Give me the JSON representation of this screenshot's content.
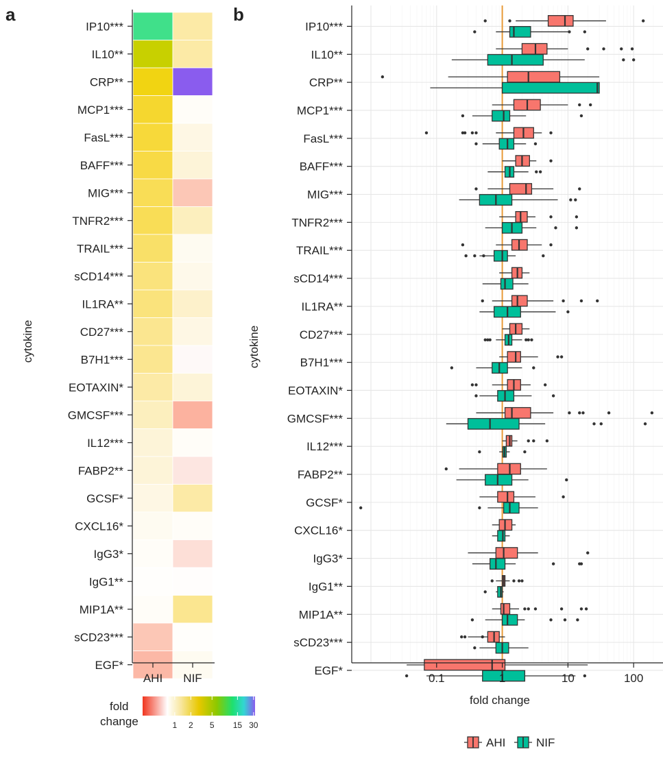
{
  "panel_a_letter": "a",
  "panel_b_letter": "b",
  "chart_data": [
    {
      "type": "heatmap",
      "panel": "a",
      "ylabel": "cytokine",
      "columns": [
        "AHI",
        "NIF"
      ],
      "rows": [
        "IP10***",
        "IL10**",
        "CRP**",
        "MCP1***",
        "FasL***",
        "BAFF***",
        "MIG***",
        "TNFR2***",
        "TRAIL***",
        "sCD14***",
        "IL1RA**",
        "CD27***",
        "B7H1***",
        "EOTAXIN*",
        "GMCSF***",
        "IL12***",
        "FABP2**",
        "GCSF*",
        "CXCL16*",
        "IgG3*",
        "IgG1**",
        "MIP1A**",
        "sCD23***",
        "EGF*"
      ],
      "values": [
        [
          9,
          1.5
        ],
        [
          4.5,
          1.5
        ],
        [
          2.5,
          30
        ],
        [
          2.2,
          1.05
        ],
        [
          2.1,
          1.2
        ],
        [
          2.0,
          1.3
        ],
        [
          1.9,
          0.6
        ],
        [
          1.9,
          1.4
        ],
        [
          1.8,
          1.1
        ],
        [
          1.7,
          1.15
        ],
        [
          1.7,
          1.35
        ],
        [
          1.6,
          1.2
        ],
        [
          1.6,
          0.95
        ],
        [
          1.5,
          1.3
        ],
        [
          1.4,
          0.4
        ],
        [
          1.3,
          1.05
        ],
        [
          1.3,
          0.8
        ],
        [
          1.2,
          1.5
        ],
        [
          1.1,
          1.05
        ],
        [
          1.05,
          0.75
        ],
        [
          1.02,
          0.98
        ],
        [
          1.05,
          1.6
        ],
        [
          0.6,
          1.03
        ],
        [
          0.45,
          1.1
        ]
      ],
      "colorbar": {
        "title": [
          "fold",
          "change"
        ],
        "tick_labels": [
          "1",
          "2",
          "5",
          "15",
          "30"
        ],
        "tick_values": [
          1,
          2,
          5,
          15,
          30
        ]
      }
    },
    {
      "type": "boxplot",
      "panel": "b",
      "ylabel": "cytokine",
      "xlabel": "fold change",
      "xscale": "log",
      "xlim": [
        0.02,
        250
      ],
      "xticks": [
        0.1,
        1,
        10,
        100
      ],
      "xtick_labels": [
        "0.1",
        "1",
        "10",
        "100"
      ],
      "reference_line": 1,
      "grid": true,
      "legend": {
        "placement": "bottom",
        "entries": [
          "AHI",
          "NIF"
        ]
      },
      "colors": {
        "AHI": "#f8766d",
        "NIF": "#00bf9a",
        "ref": "#e89a38"
      },
      "categories": [
        "IP10***",
        "IL10**",
        "CRP**",
        "MCP1***",
        "FasL***",
        "BAFF***",
        "MIG***",
        "TNFR2***",
        "TRAIL***",
        "sCD14***",
        "IL1RA**",
        "CD27***",
        "B7H1***",
        "EOTAXIN*",
        "GMCSF***",
        "IL12***",
        "FABP2**",
        "GCSF*",
        "CXCL16*",
        "IgG3*",
        "IgG1**",
        "MIP1A**",
        "sCD23***",
        "EGF*"
      ],
      "series": [
        {
          "name": "AHI",
          "boxes": [
            {
              "min": 1.6,
              "q1": 5,
              "median": 9,
              "q3": 12,
              "max": 38,
              "outliers": [
                0.55,
                1.3,
                140
              ]
            },
            {
              "min": 0.8,
              "q1": 2,
              "median": 3.2,
              "q3": 4.8,
              "max": 10,
              "outliers": [
                20,
                35,
                65,
                95
              ]
            },
            {
              "min": 0.15,
              "q1": 1.2,
              "median": 2.5,
              "q3": 7.5,
              "max": 30,
              "outliers": [
                0.015
              ]
            },
            {
              "min": 0.7,
              "q1": 1.5,
              "median": 2.4,
              "q3": 3.8,
              "max": 10,
              "outliers": [
                15,
                22
              ]
            },
            {
              "min": 0.8,
              "q1": 1.5,
              "median": 2.1,
              "q3": 3,
              "max": 4,
              "outliers": [
                0.07,
                0.25,
                0.27,
                0.35,
                0.4,
                5.5
              ]
            },
            {
              "min": 1,
              "q1": 1.6,
              "median": 2,
              "q3": 2.6,
              "max": 3.3,
              "outliers": [
                5.5
              ]
            },
            {
              "min": 0.6,
              "q1": 1.3,
              "median": 2.3,
              "q3": 2.8,
              "max": 6,
              "outliers": [
                0.4,
                15
              ]
            },
            {
              "min": 0.9,
              "q1": 1.6,
              "median": 1.9,
              "q3": 2.4,
              "max": 3.2,
              "outliers": [
                5.5,
                13.5
              ]
            },
            {
              "min": 0.8,
              "q1": 1.4,
              "median": 1.8,
              "q3": 2.4,
              "max": 4,
              "outliers": [
                0.25,
                5.5
              ]
            },
            {
              "min": 0.9,
              "q1": 1.4,
              "median": 1.7,
              "q3": 2,
              "max": 2.6,
              "outliers": []
            },
            {
              "min": 0.7,
              "q1": 1.4,
              "median": 1.7,
              "q3": 2.4,
              "max": 6,
              "outliers": [
                0.5,
                8.5,
                16,
                28
              ]
            },
            {
              "min": 1,
              "q1": 1.3,
              "median": 1.6,
              "q3": 2,
              "max": 2.6,
              "outliers": []
            },
            {
              "min": 0.9,
              "q1": 1.2,
              "median": 1.6,
              "q3": 1.9,
              "max": 3.5,
              "outliers": [
                7,
                8
              ]
            },
            {
              "min": 0.7,
              "q1": 1.2,
              "median": 1.5,
              "q3": 1.9,
              "max": 2.7,
              "outliers": [
                0.35,
                0.4,
                4.5
              ]
            },
            {
              "min": 0.4,
              "q1": 1.1,
              "median": 1.4,
              "q3": 2.7,
              "max": 6,
              "outliers": [
                10.5,
                15,
                17,
                42,
                190
              ]
            },
            {
              "min": 1,
              "q1": 1.15,
              "median": 1.3,
              "q3": 1.4,
              "max": 1.7,
              "outliers": [
                2.5,
                3,
                4.8
              ]
            },
            {
              "min": 0.22,
              "q1": 0.85,
              "median": 1.3,
              "q3": 1.9,
              "max": 4.8,
              "outliers": [
                0.14
              ]
            },
            {
              "min": 0.45,
              "q1": 0.85,
              "median": 1.2,
              "q3": 1.5,
              "max": 3.2,
              "outliers": [
                8.5
              ]
            },
            {
              "min": 0.7,
              "q1": 0.9,
              "median": 1.1,
              "q3": 1.4,
              "max": 1.6,
              "outliers": []
            },
            {
              "min": 0.3,
              "q1": 0.8,
              "median": 1.05,
              "q3": 1.7,
              "max": 3.5,
              "outliers": [
                20
              ]
            },
            {
              "min": 0.8,
              "q1": 1,
              "median": 1.05,
              "q3": 1.1,
              "max": 1.3,
              "outliers": [
                0.7,
                1.5,
                1.8,
                2
              ]
            },
            {
              "min": 0.7,
              "q1": 0.95,
              "median": 1.05,
              "q3": 1.3,
              "max": 1.8,
              "outliers": [
                2.2,
                2.5,
                3.2,
                8,
                16,
                19
              ]
            },
            {
              "min": 0.3,
              "q1": 0.6,
              "median": 0.75,
              "q3": 0.9,
              "max": 1.1,
              "outliers": [
                0.24,
                0.27,
                0.5
              ]
            },
            {
              "min": 0.035,
              "q1": 0.065,
              "median": 0.7,
              "q3": 1.1,
              "max": 20,
              "outliers": []
            }
          ]
        },
        {
          "name": "NIF",
          "boxes": [
            {
              "min": 0.8,
              "q1": 1.3,
              "median": 1.5,
              "q3": 2.7,
              "max": 10,
              "outliers": [
                0.38,
                10.5,
                18
              ]
            },
            {
              "min": 0.17,
              "q1": 0.6,
              "median": 1.4,
              "q3": 4.2,
              "max": 18,
              "outliers": [
                70,
                100
              ]
            },
            {
              "min": 0.08,
              "q1": 1,
              "median": 28,
              "q3": 30,
              "max": 30,
              "outliers": []
            },
            {
              "min": 0.35,
              "q1": 0.7,
              "median": 1.05,
              "q3": 1.3,
              "max": 2.3,
              "outliers": [
                0.25,
                16
              ]
            },
            {
              "min": 0.5,
              "q1": 0.9,
              "median": 1.2,
              "q3": 1.5,
              "max": 2.3,
              "outliers": [
                0.4,
                3.2
              ]
            },
            {
              "min": 0.6,
              "q1": 1.1,
              "median": 1.3,
              "q3": 1.5,
              "max": 2.5,
              "outliers": [
                3.3,
                3.8
              ]
            },
            {
              "min": 0.22,
              "q1": 0.45,
              "median": 0.8,
              "q3": 1.4,
              "max": 7,
              "outliers": [
                11,
                13
              ]
            },
            {
              "min": 0.55,
              "q1": 1,
              "median": 1.4,
              "q3": 2,
              "max": 3.3,
              "outliers": [
                6.5,
                13.5
              ]
            },
            {
              "min": 0.45,
              "q1": 0.75,
              "median": 1,
              "q3": 1.2,
              "max": 1.6,
              "outliers": [
                0.28,
                0.38,
                0.52,
                4.2
              ]
            },
            {
              "min": 0.5,
              "q1": 0.95,
              "median": 1.1,
              "q3": 1.45,
              "max": 2.5,
              "outliers": []
            },
            {
              "min": 0.45,
              "q1": 0.75,
              "median": 1.2,
              "q3": 1.9,
              "max": 6.5,
              "outliers": [
                10
              ]
            },
            {
              "min": 0.8,
              "q1": 1.1,
              "median": 1.25,
              "q3": 1.4,
              "max": 2,
              "outliers": [
                0.55,
                0.6,
                0.65,
                2.3,
                2.5,
                2.8
              ]
            },
            {
              "min": 0.4,
              "q1": 0.7,
              "median": 0.9,
              "q3": 1.2,
              "max": 2,
              "outliers": [
                0.17,
                3
              ]
            },
            {
              "min": 0.45,
              "q1": 0.85,
              "median": 1.1,
              "q3": 1.5,
              "max": 2.8,
              "outliers": [
                0.4,
                6
              ]
            },
            {
              "min": 0.14,
              "q1": 0.3,
              "median": 0.65,
              "q3": 1.8,
              "max": 4.5,
              "outliers": [
                25,
                32,
                150
              ]
            },
            {
              "min": 0.9,
              "q1": 1.02,
              "median": 1.08,
              "q3": 1.15,
              "max": 1.3,
              "outliers": [
                0.45,
                2.2
              ]
            },
            {
              "min": 0.2,
              "q1": 0.55,
              "median": 0.85,
              "q3": 1.4,
              "max": 2.5,
              "outliers": [
                9.5
              ]
            },
            {
              "min": 0.6,
              "q1": 1.05,
              "median": 1.3,
              "q3": 1.8,
              "max": 3.5,
              "outliers": [
                0.007,
                0.45
              ]
            },
            {
              "min": 0.7,
              "q1": 0.85,
              "median": 1.02,
              "q3": 1.1,
              "max": 1.3,
              "outliers": []
            },
            {
              "min": 0.35,
              "q1": 0.65,
              "median": 0.8,
              "q3": 1.1,
              "max": 1.6,
              "outliers": [
                6,
                15,
                16
              ]
            },
            {
              "min": 0.8,
              "q1": 0.85,
              "median": 0.95,
              "q3": 1,
              "max": 1.05,
              "outliers": [
                0.55
              ]
            },
            {
              "min": 0.55,
              "q1": 1,
              "median": 1.2,
              "q3": 1.7,
              "max": 2.2,
              "outliers": [
                0.35,
                5.5,
                9,
                14
              ]
            },
            {
              "min": 0.45,
              "q1": 0.8,
              "median": 1,
              "q3": 1.25,
              "max": 2.5,
              "outliers": [
                0.38
              ]
            },
            {
              "min": 0.07,
              "q1": 0.5,
              "median": 1,
              "q3": 2.2,
              "max": 13,
              "outliers": [
                0.035,
                18
              ]
            }
          ]
        }
      ]
    }
  ]
}
